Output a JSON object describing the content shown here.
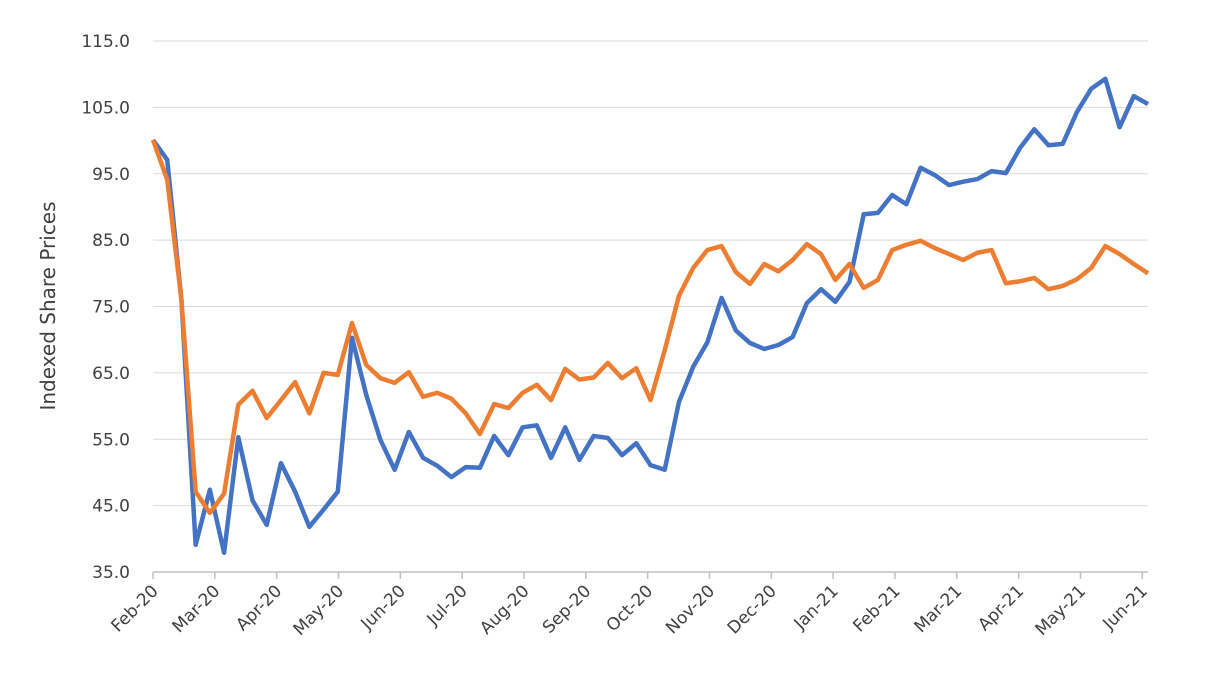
{
  "chart_data": {
    "type": "line",
    "y_label": "Indexed Share Prices",
    "x": [
      0,
      1,
      2,
      3,
      4,
      5,
      6,
      7,
      8,
      9,
      10,
      11,
      12,
      13,
      14,
      15,
      16,
      17,
      18,
      19,
      20,
      21,
      22,
      23,
      24,
      25,
      26,
      27,
      28,
      29,
      30,
      31,
      32,
      33,
      34,
      35,
      36,
      37,
      38,
      39,
      40,
      41,
      42,
      43,
      44,
      45,
      46,
      47,
      48,
      49,
      50,
      51,
      52,
      53,
      54,
      55,
      56,
      57,
      58,
      59,
      60,
      61,
      62,
      63,
      64,
      65,
      66,
      67,
      68,
      69,
      70
    ],
    "xlim": [
      0,
      70
    ],
    "xticks": [
      {
        "value": 0,
        "label": "Feb-20"
      },
      {
        "value": 4.35,
        "label": "Mar-20"
      },
      {
        "value": 8.7,
        "label": "Apr-20"
      },
      {
        "value": 13.05,
        "label": "May-20"
      },
      {
        "value": 17.4,
        "label": "Jun-20"
      },
      {
        "value": 21.75,
        "label": "Jul-20"
      },
      {
        "value": 26.1,
        "label": "Aug-20"
      },
      {
        "value": 30.45,
        "label": "Sep-20"
      },
      {
        "value": 34.8,
        "label": "Oct-20"
      },
      {
        "value": 39.15,
        "label": "Nov-20"
      },
      {
        "value": 43.5,
        "label": "Dec-20"
      },
      {
        "value": 47.85,
        "label": "Jan-21"
      },
      {
        "value": 52.2,
        "label": "Feb-21"
      },
      {
        "value": 56.55,
        "label": "Mar-21"
      },
      {
        "value": 60.9,
        "label": "Apr-21"
      },
      {
        "value": 65.25,
        "label": "May-21"
      },
      {
        "value": 69.6,
        "label": "Jun-21"
      }
    ],
    "ylim": [
      35,
      115
    ],
    "yticks": [
      {
        "value": 35,
        "label": "35.0"
      },
      {
        "value": 45,
        "label": "45.0"
      },
      {
        "value": 55,
        "label": "55.0"
      },
      {
        "value": 65,
        "label": "65.0"
      },
      {
        "value": 75,
        "label": "75.0"
      },
      {
        "value": 85,
        "label": "85.0"
      },
      {
        "value": 95,
        "label": "95.0"
      },
      {
        "value": 105,
        "label": "105.0"
      },
      {
        "value": 115,
        "label": "115.0"
      }
    ],
    "grid": true,
    "series": [
      {
        "color": "#4472c4",
        "values": [
          100.1,
          97.1,
          76.0,
          39.1,
          47.4,
          37.9,
          55.3,
          45.8,
          42.1,
          51.4,
          47.1,
          41.8,
          44.4,
          47.1,
          70.3,
          61.7,
          54.9,
          50.4,
          56.1,
          52.2,
          51.0,
          49.3,
          50.8,
          50.7,
          55.5,
          52.6,
          56.8,
          57.1,
          52.2,
          56.8,
          51.9,
          55.5,
          55.2,
          52.6,
          54.4,
          51.1,
          50.4,
          60.6,
          65.9,
          69.6,
          76.3,
          71.4,
          69.5,
          68.6,
          69.2,
          70.4,
          75.5,
          77.6,
          75.7,
          78.7,
          88.9,
          89.1,
          91.8,
          90.4,
          95.9,
          94.8,
          93.3,
          93.8,
          94.2,
          95.4,
          95.1,
          98.9,
          101.7,
          99.3,
          99.5,
          104.3,
          107.8,
          109.3,
          102.0,
          106.7,
          105.5
        ]
      },
      {
        "color": "#ed7d31",
        "values": [
          100.1,
          94.1,
          76.0,
          47.1,
          43.9,
          46.8,
          60.2,
          62.3,
          58.2,
          60.9,
          63.6,
          58.9,
          65.0,
          64.7,
          72.5,
          66.2,
          64.2,
          63.5,
          65.1,
          61.4,
          62.0,
          61.1,
          58.9,
          55.8,
          60.3,
          59.7,
          62.0,
          63.2,
          60.9,
          65.6,
          64.0,
          64.3,
          66.5,
          64.2,
          65.7,
          60.9,
          68.4,
          76.6,
          80.8,
          83.5,
          84.1,
          80.2,
          78.4,
          81.4,
          80.3,
          82.0,
          84.4,
          82.9,
          79.0,
          81.4,
          77.8,
          79.0,
          83.5,
          84.3,
          84.9,
          83.8,
          82.9,
          82.0,
          83.1,
          83.5,
          78.5,
          78.8,
          79.3,
          77.6,
          78.1,
          79.1,
          80.8,
          84.1,
          82.9,
          81.4,
          80.0
        ]
      }
    ]
  }
}
